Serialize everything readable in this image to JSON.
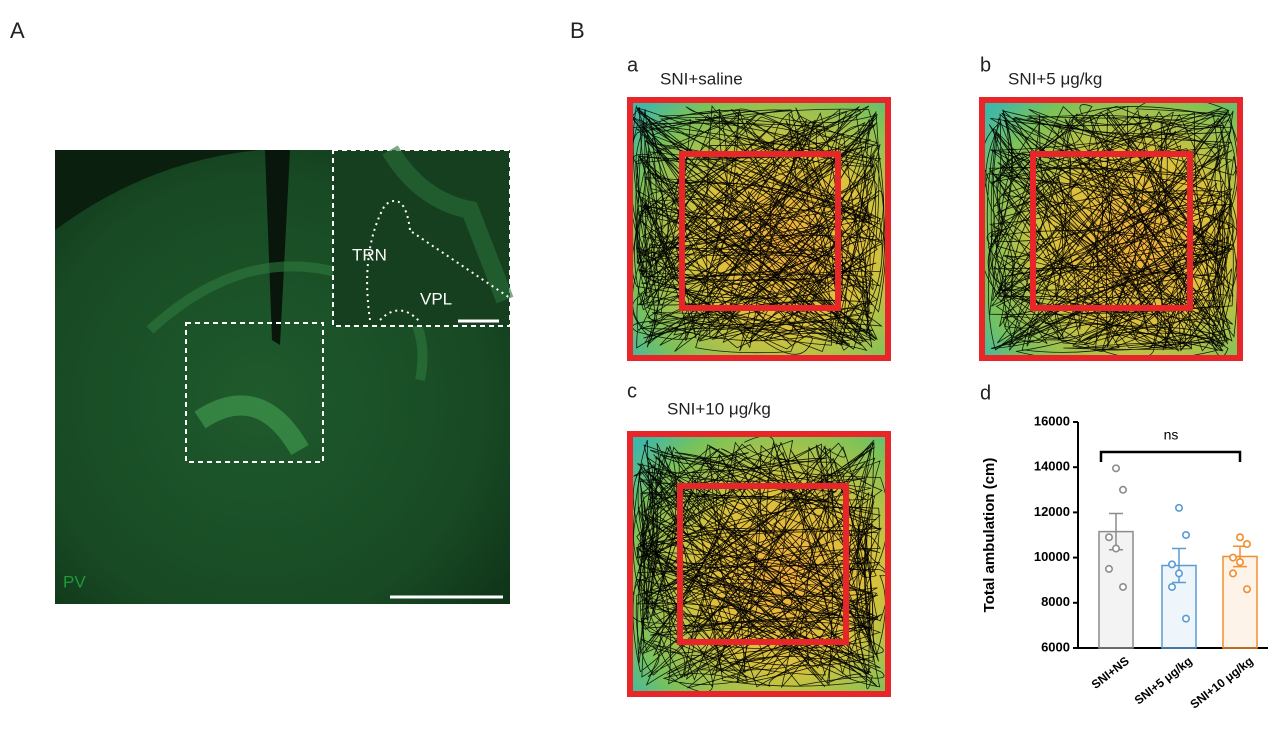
{
  "panel_a": {
    "label": "A",
    "inset_labels": [
      "TRN",
      "VPL"
    ],
    "stain": "PV"
  },
  "panel_b": {
    "label": "B",
    "subpanels": [
      {
        "label": "a",
        "title": "SNI+saline"
      },
      {
        "label": "b",
        "title": "SNI+5 μg/kg"
      },
      {
        "label": "c",
        "title": "SNI+10 μg/kg"
      },
      {
        "label": "d"
      }
    ]
  },
  "chart_data": {
    "type": "bar",
    "categories": [
      "SNI+NS",
      "SNI+5 μg/kg",
      "SNI+10 μg/kg"
    ],
    "values": [
      11150,
      9650,
      10050
    ],
    "errors": [
      800,
      750,
      450
    ],
    "points": [
      [
        13950,
        13000,
        10900,
        10400,
        9500,
        8700
      ],
      [
        12200,
        11000,
        9700,
        9300,
        8700,
        7300
      ],
      [
        10900,
        10600,
        10000,
        9800,
        9300,
        8600
      ]
    ],
    "colors": [
      "#8c8c8c",
      "#5b9bd5",
      "#f28e2b"
    ],
    "ylabel": "Total ambulation (cm)",
    "ylim": [
      6000,
      16000
    ],
    "yticks": [
      6000,
      8000,
      10000,
      12000,
      14000,
      16000
    ],
    "annotation": "ns"
  }
}
